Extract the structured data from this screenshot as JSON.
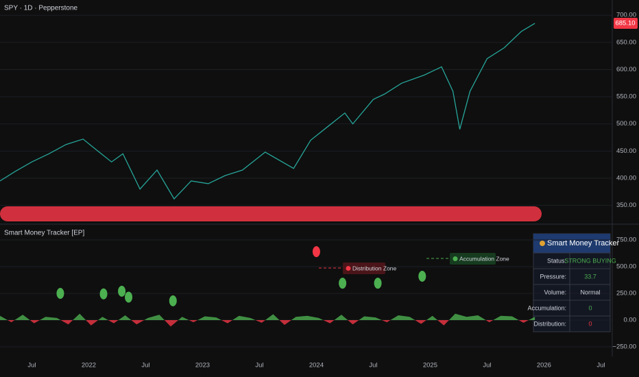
{
  "header": {
    "symbol": "SPY · 1D · Pepperstone"
  },
  "chart_data": [
    {
      "type": "line",
      "color": "#26a69a",
      "x": [
        2021.22,
        2021.35,
        2021.5,
        2021.65,
        2021.8,
        2021.95,
        2022.05,
        2022.2,
        2022.3,
        2022.45,
        2022.6,
        2022.75,
        2022.9,
        2023.05,
        2023.2,
        2023.35,
        2023.55,
        2023.8,
        2023.95,
        2024.1,
        2024.25,
        2024.32,
        2024.5,
        2024.6,
        2024.75,
        2024.95,
        2025.1,
        2025.2,
        2025.26,
        2025.35,
        2025.5,
        2025.65,
        2025.8,
        2025.92
      ],
      "values": [
        395,
        412,
        430,
        445,
        462,
        472,
        455,
        430,
        445,
        380,
        415,
        362,
        395,
        390,
        405,
        415,
        448,
        418,
        470,
        495,
        520,
        500,
        545,
        555,
        575,
        590,
        605,
        560,
        490,
        560,
        620,
        640,
        670,
        685.1
      ],
      "price_tag": {
        "value": 685.1,
        "label": "685.10"
      },
      "xlim": [
        2021.22,
        2026.6
      ],
      "ylim": [
        318,
        728
      ],
      "yticks": [
        {
          "value": 350,
          "label": "350.00"
        },
        {
          "value": 400,
          "label": "400.00"
        },
        {
          "value": 450,
          "label": "450.00"
        },
        {
          "value": 500,
          "label": "500.00"
        },
        {
          "value": 550,
          "label": "550.00"
        },
        {
          "value": 600,
          "label": "600.00"
        },
        {
          "value": 650,
          "label": "650.00"
        },
        {
          "value": 700,
          "label": "700.00"
        }
      ]
    },
    {
      "type": "indicator",
      "title": "Smart Money Tracker [EP]",
      "oscillator": {
        "x": [
          2021.22,
          2021.32,
          2021.42,
          2021.52,
          2021.62,
          2021.72,
          2021.82,
          2021.92,
          2022.02,
          2022.12,
          2022.22,
          2022.32,
          2022.42,
          2022.52,
          2022.62,
          2022.72,
          2022.82,
          2022.92,
          2023.02,
          2023.12,
          2023.22,
          2023.32,
          2023.42,
          2023.52,
          2023.62,
          2023.72,
          2023.82,
          2023.92,
          2024.02,
          2024.12,
          2024.22,
          2024.32,
          2024.42,
          2024.52,
          2024.62,
          2024.72,
          2024.82,
          2024.92,
          2025.02,
          2025.12,
          2025.22,
          2025.32,
          2025.42,
          2025.52,
          2025.62,
          2025.72,
          2025.82,
          2025.92
        ],
        "values": [
          40,
          -20,
          50,
          -30,
          30,
          20,
          -40,
          60,
          -50,
          30,
          -30,
          45,
          -40,
          20,
          50,
          -60,
          30,
          -20,
          35,
          25,
          -30,
          40,
          20,
          -25,
          55,
          -45,
          30,
          40,
          20,
          -30,
          50,
          -40,
          35,
          25,
          -20,
          45,
          30,
          -35,
          40,
          -50,
          60,
          30,
          45,
          -20,
          40,
          35,
          -25,
          30
        ]
      },
      "series": [
        {
          "color": "#4caf50",
          "x": [
            2021.75,
            2022.13,
            2022.29,
            2022.35,
            2022.74,
            2024.23,
            2024.54,
            2024.93
          ],
          "values": [
            250,
            245,
            270,
            215,
            180,
            345,
            345,
            410
          ]
        },
        {
          "color": "#f23645",
          "x": [
            2024.0
          ],
          "values": [
            640
          ]
        }
      ],
      "annotations": [
        {
          "text": "Distribution Zone"
        },
        {
          "text": "Accumulation Zone"
        }
      ],
      "xlim": [
        2021.22,
        2026.6
      ],
      "ylim": [
        -327,
        878
      ],
      "yticks": [
        {
          "value": -250,
          "label": "−250.00"
        },
        {
          "value": 0,
          "label": "0.00"
        },
        {
          "value": 250,
          "label": "250.00"
        },
        {
          "value": 500,
          "label": "500.00"
        },
        {
          "value": 750,
          "label": "750.00"
        }
      ],
      "xticks": [
        {
          "value": 2021.5,
          "label": "Jul"
        },
        {
          "value": 2022,
          "label": "2022"
        },
        {
          "value": 2022.5,
          "label": "Jul"
        },
        {
          "value": 2023,
          "label": "2023"
        },
        {
          "value": 2023.5,
          "label": "Jul"
        },
        {
          "value": 2024,
          "label": "2024"
        },
        {
          "value": 2024.5,
          "label": "Jul"
        },
        {
          "value": 2025,
          "label": "2025"
        },
        {
          "value": 2025.5,
          "label": "Jul"
        },
        {
          "value": 2026,
          "label": "2026"
        },
        {
          "value": 2026.5,
          "label": "Jul"
        }
      ]
    }
  ],
  "table": {
    "title": "Smart Money Tracker",
    "rows": [
      [
        "Status:",
        "STRONG BUYING"
      ],
      [
        "Pressure:",
        "33.7"
      ],
      [
        "Volume:",
        "Normal"
      ],
      [
        "Accumulation:",
        "0"
      ],
      [
        "Distribution:",
        "0"
      ]
    ]
  }
}
